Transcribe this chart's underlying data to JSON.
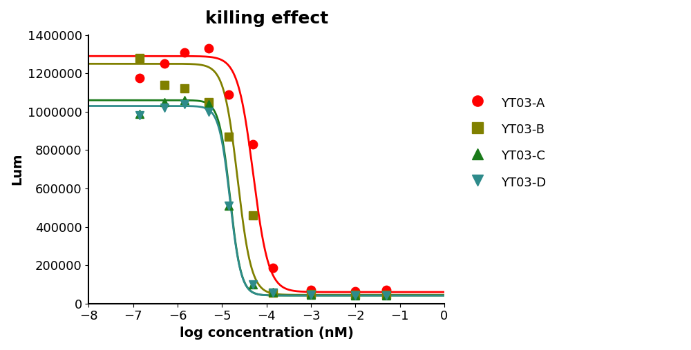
{
  "title": "killing effect",
  "xlabel": "log concentration (nM)",
  "ylabel": "Lum",
  "xlim": [
    -8,
    0
  ],
  "ylim": [
    0,
    1400000
  ],
  "xticks": [
    -8,
    -7,
    -6,
    -5,
    -4,
    -3,
    -2,
    -1,
    0
  ],
  "yticks": [
    0,
    200000,
    400000,
    600000,
    800000,
    1000000,
    1200000,
    1400000
  ],
  "series": [
    {
      "label": "YT03-A",
      "color": "#FF0000",
      "marker": "o",
      "markersize": 9,
      "linewidth": 2.0,
      "x": [
        -6.85,
        -6.3,
        -5.85,
        -5.3,
        -4.85,
        -4.3,
        -3.85,
        -3.0,
        -2.0,
        -1.3
      ],
      "y": [
        1175000,
        1250000,
        1310000,
        1330000,
        1090000,
        830000,
        185000,
        70000,
        65000,
        70000
      ],
      "ec50_log": -4.3,
      "hill": 2.5,
      "top": 1290000,
      "bottom": 60000
    },
    {
      "label": "YT03-B",
      "color": "#808000",
      "marker": "s",
      "markersize": 8,
      "linewidth": 2.0,
      "x": [
        -6.85,
        -6.3,
        -5.85,
        -5.3,
        -4.85,
        -4.3,
        -3.85,
        -3.0,
        -2.0,
        -1.3
      ],
      "y": [
        1280000,
        1140000,
        1120000,
        1050000,
        870000,
        460000,
        55000,
        50000,
        45000,
        45000
      ],
      "ec50_log": -4.65,
      "hill": 2.8,
      "top": 1250000,
      "bottom": 45000
    },
    {
      "label": "YT03-C",
      "color": "#1a7a1a",
      "marker": "^",
      "markersize": 8,
      "linewidth": 2.0,
      "x": [
        -6.85,
        -6.3,
        -5.85,
        -5.3,
        -4.85,
        -4.3,
        -3.85,
        -3.0,
        -2.0,
        -1.3
      ],
      "y": [
        990000,
        1050000,
        1060000,
        1040000,
        510000,
        100000,
        60000,
        45000,
        42000,
        42000
      ],
      "ec50_log": -4.82,
      "hill": 3.5,
      "top": 1060000,
      "bottom": 42000
    },
    {
      "label": "YT03-D",
      "color": "#2e8b8b",
      "marker": "v",
      "markersize": 8,
      "linewidth": 2.0,
      "x": [
        -6.85,
        -6.3,
        -5.85,
        -5.3,
        -4.85,
        -4.3,
        -3.85,
        -3.0,
        -2.0,
        -1.3
      ],
      "y": [
        980000,
        1020000,
        1040000,
        1000000,
        510000,
        100000,
        58000,
        44000,
        42000,
        42000
      ],
      "ec50_log": -4.82,
      "hill": 3.5,
      "top": 1030000,
      "bottom": 42000
    }
  ],
  "background_color": "#FFFFFF",
  "title_fontsize": 18,
  "label_fontsize": 14,
  "tick_fontsize": 13
}
